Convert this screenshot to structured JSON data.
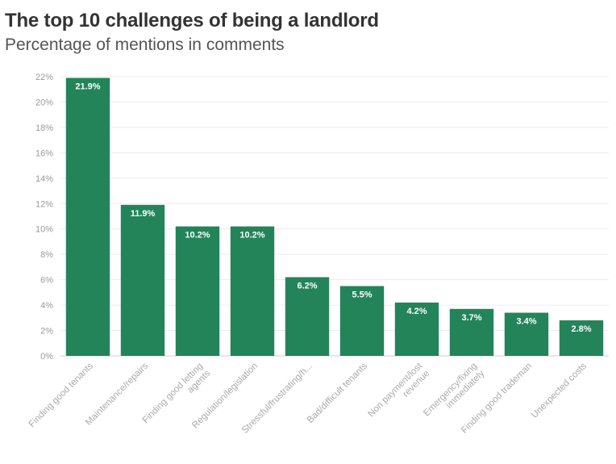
{
  "chart_data": {
    "type": "bar",
    "title": "The top 10 challenges of being a landlord",
    "subtitle": "Percentage of mentions in comments",
    "xlabel": "",
    "ylabel": "",
    "ylim": [
      0,
      22
    ],
    "yticks": [
      0,
      2,
      4,
      6,
      8,
      10,
      12,
      14,
      16,
      18,
      20,
      22
    ],
    "ytick_suffix": "%",
    "grid": true,
    "legend": "none",
    "bar_color": "#23845a",
    "categories": [
      [
        "Finding good tenants"
      ],
      [
        "Maintenance/repairs"
      ],
      [
        "Finding good letting",
        "agents"
      ],
      [
        "Regulation/legislation"
      ],
      [
        "Stressful/frustrating/h..."
      ],
      [
        "Bad/difficult tenants"
      ],
      [
        "Non payment/lost",
        "revenue"
      ],
      [
        "Emergency/fixing",
        "immediately"
      ],
      [
        "Finding good trademan"
      ],
      [
        "Unexpected costs"
      ]
    ],
    "values": [
      21.9,
      11.9,
      10.2,
      10.2,
      6.2,
      5.5,
      4.2,
      3.7,
      3.4,
      2.8
    ],
    "data_labels": [
      "21.9%",
      "11.9%",
      "10.2%",
      "10.2%",
      "6.2%",
      "5.5%",
      "4.2%",
      "3.7%",
      "3.4%",
      "2.8%"
    ]
  }
}
